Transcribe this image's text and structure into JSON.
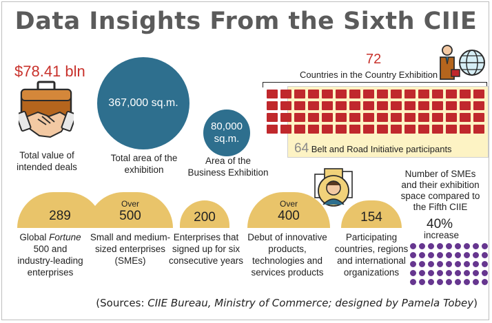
{
  "title": "Data Insights From the Sixth CIIE",
  "deals": {
    "value": "$78.41 bln",
    "label": "Total value of intended deals"
  },
  "area": {
    "value": "367,000 sq.m.",
    "label": "Total area of the exhibition"
  },
  "business_area": {
    "value_line1": "80,000",
    "value_line2": "sq.m.",
    "label": "Area of the Business Exhibition"
  },
  "countries": {
    "count": "72",
    "label": "Countries in the Country Exhibition",
    "bri_count": "64",
    "bri_label": "Belt and Road Initiative participants",
    "total_squares": 72,
    "bri_squares": 64
  },
  "stats": [
    {
      "over": "",
      "num": "289",
      "label": ""
    },
    {
      "over": "Over",
      "num": "500",
      "label": "Small and medium-sized enterprises (SMEs)"
    },
    {
      "over": "",
      "num": "200",
      "label": "Enterprises that signed up for six consecutive years"
    },
    {
      "over": "Over",
      "num": "400",
      "label": "Debut of innovative products, technologies and services products"
    },
    {
      "over": "",
      "num": "154",
      "label": "Participating countries, regions and international organizations"
    }
  ],
  "fortune_label": {
    "pre": "Global ",
    "em": "Fortune",
    "post": " 500  and industry-leading enterprises"
  },
  "smes": {
    "label": "Number of SMEs and their exhibition space compared to the Fifth CIIE",
    "value": "40%",
    "sub": "increase"
  },
  "sources": {
    "open": "(Sources: ",
    "em": "CIIE Bureau, Ministry of Commerce; designed by Pamela Tobey",
    "close": ")"
  },
  "colors": {
    "red": "#c0282d",
    "blue": "#2e6f8e",
    "gold": "#e9c46a",
    "purple": "#66368f",
    "highlight": "#fdf3c4"
  },
  "icons": [
    "briefcase-handshake-icon",
    "businessman-globe-icon",
    "businessman-city-icon"
  ]
}
